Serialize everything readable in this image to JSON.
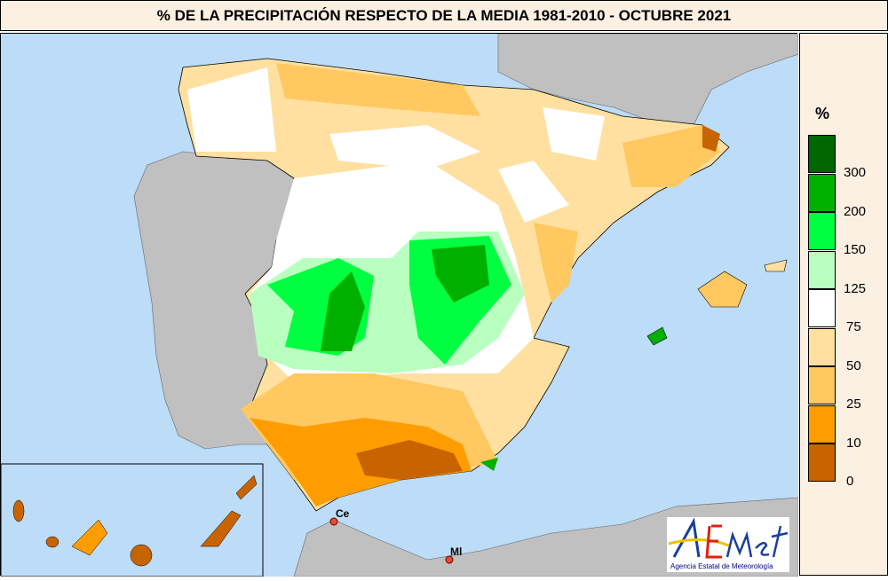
{
  "title": "% DE LA PRECIPITACIÓN RESPECTO DE LA MEDIA 1981-2010 - OCTUBRE 2021",
  "legend": {
    "unit": "%",
    "colors": [
      "#006600",
      "#00b000",
      "#00ff40",
      "#b8ffc0",
      "#ffffff",
      "#ffe0a0",
      "#ffc860",
      "#ff9c00",
      "#c86400"
    ],
    "labels": [
      "300",
      "200",
      "150",
      "125",
      "75",
      "50",
      "25",
      "10",
      "0"
    ]
  },
  "map": {
    "colors": {
      "sea": "#bcdcf8",
      "land_other": "#c0c0c0"
    },
    "cities": [
      {
        "label": "Ce"
      },
      {
        "label": "Ml"
      }
    ]
  },
  "logo": {
    "text": "AEmet",
    "subtitle": "Agencia Estatal de Meteorología"
  }
}
